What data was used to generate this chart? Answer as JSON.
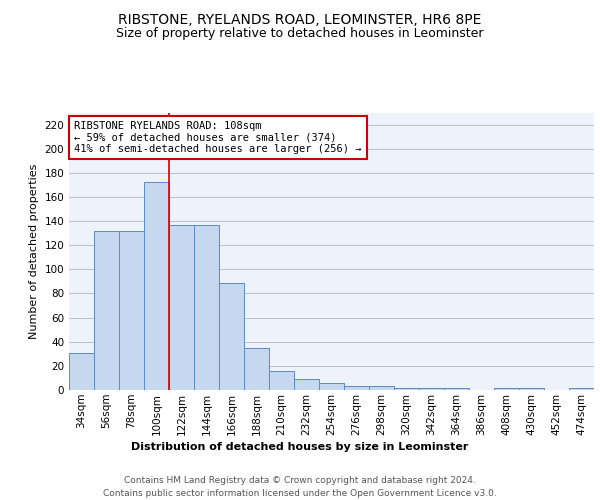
{
  "title1": "RIBSTONE, RYELANDS ROAD, LEOMINSTER, HR6 8PE",
  "title2": "Size of property relative to detached houses in Leominster",
  "xlabel": "Distribution of detached houses by size in Leominster",
  "ylabel": "Number of detached properties",
  "categories": [
    "34sqm",
    "56sqm",
    "78sqm",
    "100sqm",
    "122sqm",
    "144sqm",
    "166sqm",
    "188sqm",
    "210sqm",
    "232sqm",
    "254sqm",
    "276sqm",
    "298sqm",
    "320sqm",
    "342sqm",
    "364sqm",
    "386sqm",
    "408sqm",
    "430sqm",
    "452sqm",
    "474sqm"
  ],
  "values": [
    31,
    132,
    132,
    172,
    137,
    137,
    89,
    35,
    16,
    9,
    6,
    3,
    3,
    2,
    2,
    2,
    0,
    2,
    2,
    0,
    2
  ],
  "bar_color": "#c5d8f0",
  "bar_edge_color": "#5b8ac5",
  "bar_width": 1.0,
  "ylim": [
    0,
    230
  ],
  "yticks": [
    0,
    20,
    40,
    60,
    80,
    100,
    120,
    140,
    160,
    180,
    200,
    220
  ],
  "annotation_title": "RIBSTONE RYELANDS ROAD: 108sqm",
  "annotation_line1": "← 59% of detached houses are smaller (374)",
  "annotation_line2": "41% of semi-detached houses are larger (256) →",
  "annotation_box_color": "#ffffff",
  "annotation_box_edge": "#cc0000",
  "vline_color": "#cc0000",
  "footer1": "Contains HM Land Registry data © Crown copyright and database right 2024.",
  "footer2": "Contains public sector information licensed under the Open Government Licence v3.0.",
  "background_color": "#eef2fb",
  "grid_color": "#b0b8d0",
  "title1_fontsize": 10,
  "title2_fontsize": 9,
  "axis_label_fontsize": 8,
  "tick_fontsize": 7.5,
  "annotation_fontsize": 7.5,
  "footer_fontsize": 6.5,
  "xlabel_fontsize": 8
}
